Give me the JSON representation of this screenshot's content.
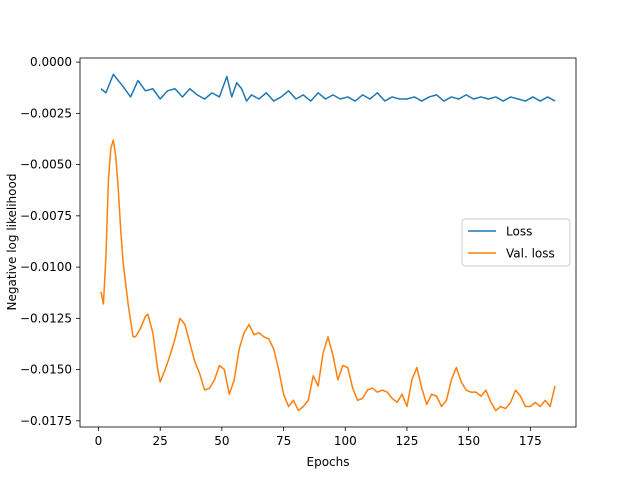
{
  "chart_data": {
    "type": "line",
    "title": "",
    "xlabel": "Epochs",
    "ylabel": "Negative log likelihood",
    "xlim": [
      -7.5,
      193.5
    ],
    "ylim": [
      -0.0178,
      0.0002
    ],
    "xticks": [
      0,
      25,
      50,
      75,
      100,
      125,
      150,
      175
    ],
    "xtick_labels": [
      "0",
      "25",
      "50",
      "75",
      "100",
      "125",
      "150",
      "175"
    ],
    "yticks": [
      0.0,
      -0.0025,
      -0.005,
      -0.0075,
      -0.01,
      -0.0125,
      -0.015,
      -0.0175
    ],
    "ytick_labels": [
      "0.0000",
      "−0.0025",
      "−0.0050",
      "−0.0075",
      "−0.0100",
      "−0.0125",
      "−0.0150",
      "−0.0175"
    ],
    "grid": false,
    "legend_position": "center-right",
    "series": [
      {
        "name": "Loss",
        "color": "#1f77b4",
        "x": [
          1,
          3,
          6,
          8,
          10,
          13,
          16,
          19,
          22,
          25,
          28,
          31,
          34,
          37,
          40,
          43,
          46,
          49,
          52,
          54,
          56,
          58,
          60,
          62,
          65,
          68,
          71,
          74,
          77,
          80,
          83,
          86,
          89,
          92,
          95,
          98,
          101,
          104,
          107,
          110,
          113,
          116,
          119,
          122,
          125,
          128,
          131,
          134,
          137,
          140,
          143,
          146,
          149,
          152,
          155,
          158,
          161,
          164,
          167,
          170,
          173,
          176,
          179,
          182,
          185
        ],
        "y": [
          -0.0013,
          -0.0015,
          -0.0006,
          -0.0009,
          -0.0012,
          -0.0017,
          -0.0009,
          -0.0014,
          -0.0013,
          -0.0018,
          -0.0014,
          -0.0013,
          -0.0017,
          -0.0013,
          -0.0016,
          -0.0018,
          -0.0015,
          -0.0017,
          -0.0007,
          -0.0017,
          -0.001,
          -0.0013,
          -0.0019,
          -0.0016,
          -0.0018,
          -0.0015,
          -0.0019,
          -0.0017,
          -0.0014,
          -0.0018,
          -0.0016,
          -0.0019,
          -0.0015,
          -0.0018,
          -0.0016,
          -0.0018,
          -0.0017,
          -0.0019,
          -0.0016,
          -0.0018,
          -0.0015,
          -0.0019,
          -0.0017,
          -0.0018,
          -0.0018,
          -0.0017,
          -0.0019,
          -0.0017,
          -0.0016,
          -0.0019,
          -0.0017,
          -0.0018,
          -0.0016,
          -0.0018,
          -0.0017,
          -0.0018,
          -0.0017,
          -0.0019,
          -0.0017,
          -0.0018,
          -0.0019,
          -0.0017,
          -0.0019,
          -0.0017,
          -0.0019
        ]
      },
      {
        "name": "Val. loss",
        "color": "#ff7f0e",
        "x": [
          1,
          2,
          3,
          4,
          5,
          6,
          7,
          8,
          9,
          10,
          12,
          14,
          15,
          17,
          19,
          20,
          22,
          24,
          25,
          27,
          29,
          31,
          33,
          35,
          37,
          39,
          41,
          43,
          45,
          47,
          49,
          51,
          53,
          55,
          57,
          59,
          61,
          63,
          65,
          67,
          69,
          71,
          73,
          75,
          77,
          79,
          81,
          83,
          85,
          87,
          89,
          91,
          93,
          95,
          97,
          99,
          101,
          103,
          105,
          107,
          109,
          111,
          113,
          115,
          117,
          119,
          121,
          123,
          125,
          127,
          129,
          131,
          133,
          135,
          137,
          139,
          141,
          143,
          145,
          147,
          149,
          151,
          153,
          155,
          157,
          159,
          161,
          163,
          165,
          167,
          169,
          171,
          173,
          175,
          177,
          179,
          181,
          183,
          185
        ],
        "y": [
          -0.0112,
          -0.0118,
          -0.0095,
          -0.0058,
          -0.0042,
          -0.0038,
          -0.0046,
          -0.0062,
          -0.0082,
          -0.0098,
          -0.0118,
          -0.0134,
          -0.0134,
          -0.013,
          -0.0124,
          -0.0123,
          -0.0132,
          -0.015,
          -0.0156,
          -0.015,
          -0.0143,
          -0.0135,
          -0.0125,
          -0.0128,
          -0.0137,
          -0.0146,
          -0.0152,
          -0.016,
          -0.0159,
          -0.0155,
          -0.0148,
          -0.015,
          -0.0162,
          -0.0155,
          -0.014,
          -0.0132,
          -0.0128,
          -0.0133,
          -0.0132,
          -0.0134,
          -0.0135,
          -0.014,
          -0.015,
          -0.0162,
          -0.0168,
          -0.0165,
          -0.017,
          -0.0168,
          -0.0165,
          -0.0153,
          -0.0158,
          -0.0142,
          -0.0134,
          -0.0143,
          -0.0155,
          -0.0148,
          -0.0149,
          -0.0159,
          -0.0165,
          -0.0164,
          -0.016,
          -0.0159,
          -0.0161,
          -0.016,
          -0.0161,
          -0.0164,
          -0.0166,
          -0.0162,
          -0.0168,
          -0.0155,
          -0.0149,
          -0.0159,
          -0.0167,
          -0.0162,
          -0.0163,
          -0.0168,
          -0.0165,
          -0.0155,
          -0.0149,
          -0.0156,
          -0.016,
          -0.0161,
          -0.0161,
          -0.0163,
          -0.016,
          -0.0166,
          -0.017,
          -0.0168,
          -0.0169,
          -0.0166,
          -0.016,
          -0.0163,
          -0.0168,
          -0.0168,
          -0.0166,
          -0.0168,
          -0.0165,
          -0.0168,
          -0.0158
        ]
      }
    ]
  }
}
